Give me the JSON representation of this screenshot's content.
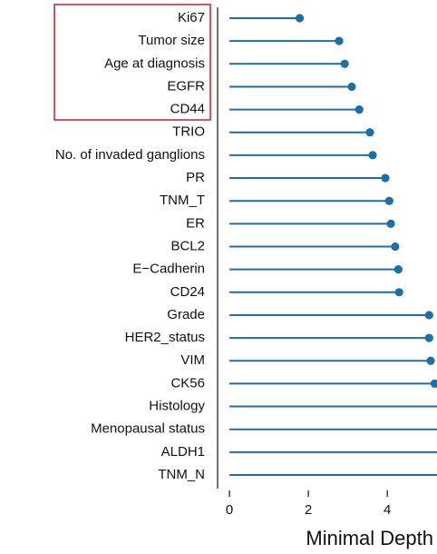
{
  "chart_data": {
    "type": "lollipop",
    "x_label": "Minimal Depth",
    "color": "#1f6fa5",
    "categories": [
      "Ki67",
      "Tumor size",
      "Age at diagnosis",
      "EGFR",
      "CD44",
      "TRIO",
      "No. of invaded ganglions",
      "PR",
      "TNM_T",
      "ER",
      "BCL2",
      "E−Cadherin",
      "CD24",
      "Grade",
      "HER2_status",
      "VIM",
      "CK56",
      "Histology",
      "Menopausal status",
      "ALDH1",
      "TNM_N"
    ],
    "values": [
      1.78,
      2.78,
      2.92,
      3.1,
      3.29,
      3.56,
      3.63,
      3.95,
      4.05,
      4.09,
      4.2,
      4.28,
      4.3,
      5.06,
      5.06,
      5.1,
      5.2,
      5.5,
      5.5,
      5.5,
      5.5
    ],
    "xlim": [
      -0.3,
      5.26
    ],
    "xticks": [
      0,
      2,
      4
    ]
  }
}
